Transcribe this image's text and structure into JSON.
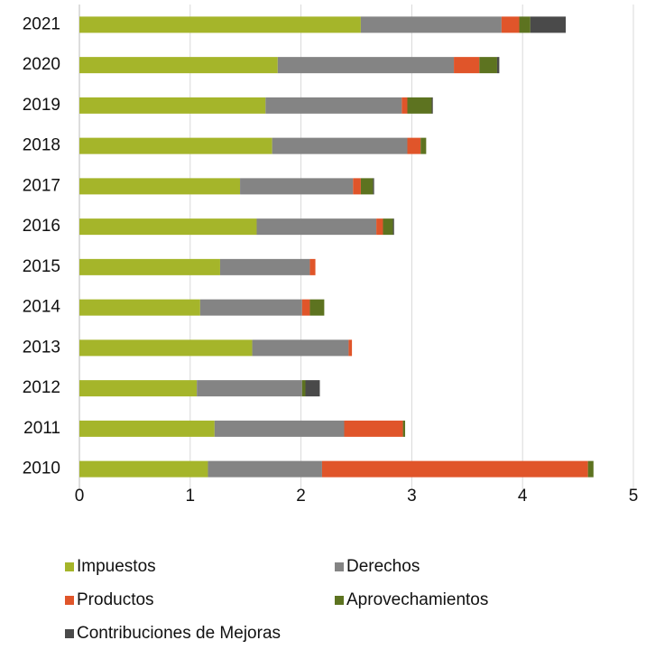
{
  "chart_data": {
    "type": "bar",
    "orientation": "horizontal",
    "stacked": true,
    "categories": [
      "2010",
      "2011",
      "2012",
      "2013",
      "2014",
      "2015",
      "2016",
      "2017",
      "2018",
      "2019",
      "2020",
      "2021"
    ],
    "series": [
      {
        "name": "Impuestos",
        "color": "#a5b52a",
        "values": [
          1.16,
          1.22,
          1.06,
          1.56,
          1.09,
          1.27,
          1.6,
          1.45,
          1.74,
          1.68,
          1.79,
          2.54
        ]
      },
      {
        "name": "Derechos",
        "color": "#848484",
        "values": [
          1.03,
          1.17,
          0.95,
          0.87,
          0.92,
          0.81,
          1.08,
          1.02,
          1.22,
          1.23,
          1.59,
          1.27
        ]
      },
      {
        "name": "Productos",
        "color": "#e0552a",
        "values": [
          2.4,
          0.53,
          0,
          0.03,
          0.07,
          0.05,
          0.06,
          0.07,
          0.12,
          0.05,
          0.23,
          0.16
        ]
      },
      {
        "name": "Aprovechamientos",
        "color": "#5d7320",
        "values": [
          0.05,
          0.02,
          0.03,
          0,
          0.13,
          0,
          0.09,
          0.11,
          0.05,
          0.22,
          0.16,
          0.1
        ]
      },
      {
        "name": "Contribuciones de Mejoras",
        "color": "#4a4a4a",
        "values": [
          0,
          0,
          0.13,
          0,
          0,
          0,
          0.01,
          0.01,
          0,
          0.01,
          0.02,
          0.32
        ]
      }
    ],
    "xlim": [
      0,
      5
    ],
    "xticks": [
      0,
      1,
      2,
      3,
      4,
      5
    ],
    "grid": true,
    "legend": "bottom"
  }
}
